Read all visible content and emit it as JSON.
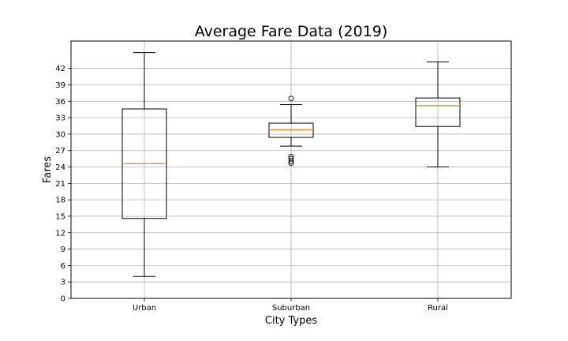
{
  "chart_data": {
    "type": "box",
    "title": "Average Fare Data (2019)",
    "xlabel": "City Types",
    "ylabel": "Fares",
    "ylim": [
      0,
      47
    ],
    "yticks": [
      0,
      3,
      6,
      9,
      12,
      15,
      18,
      21,
      24,
      27,
      30,
      33,
      36,
      39,
      42
    ],
    "grid": true,
    "categories": [
      "Urban",
      "Suburban",
      "Rural"
    ],
    "boxes": [
      {
        "label": "Urban",
        "whisker_low": 4.0,
        "q1": 14.6,
        "median": 24.6,
        "q3": 34.6,
        "whisker_high": 44.9,
        "outliers": []
      },
      {
        "label": "Suburban",
        "whisker_low": 27.8,
        "q1": 29.4,
        "median": 30.8,
        "q3": 32.0,
        "whisker_high": 35.4,
        "outliers": [
          36.5,
          25.9,
          25.5,
          25.0,
          24.7
        ]
      },
      {
        "label": "Rural",
        "whisker_low": 24.0,
        "q1": 31.4,
        "median": 35.2,
        "q3": 36.6,
        "whisker_high": 43.2,
        "outliers": []
      }
    ],
    "colors": {
      "box": "#000000",
      "median": "#ff7f0e",
      "grid": "#b0b0b0"
    }
  }
}
